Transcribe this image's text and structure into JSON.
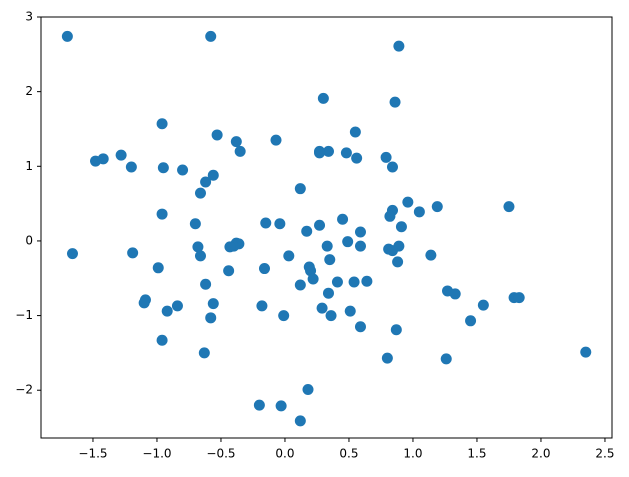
{
  "chart_data": {
    "type": "scatter",
    "color": "#1f77b4",
    "x": [
      -1.7,
      -0.58,
      0.89,
      0.3,
      0.86,
      -0.96,
      -0.53,
      0.55,
      -0.38,
      -0.07,
      -0.35,
      0.27,
      0.34,
      0.27,
      0.48,
      0.56,
      0.79,
      -1.28,
      -1.48,
      -1.42,
      -1.2,
      -0.95,
      -0.8,
      0.84,
      -0.56,
      -0.62,
      -0.66,
      0.12,
      0.96,
      0.84,
      0.82,
      1.05,
      1.19,
      1.75,
      -0.96,
      0.45,
      -0.7,
      -0.15,
      -0.04,
      0.27,
      0.17,
      0.59,
      0.91,
      0.49,
      0.33,
      0.59,
      0.81,
      0.89,
      0.84,
      0.88,
      -0.38,
      -0.36,
      -0.4,
      -0.43,
      -0.68,
      -0.66,
      -1.66,
      -1.19,
      -0.99,
      -0.44,
      -0.16,
      0.03,
      0.35,
      0.19,
      0.2,
      0.22,
      0.12,
      0.41,
      0.54,
      0.64,
      0.34,
      -0.62,
      1.14,
      1.27,
      1.33,
      -1.09,
      -1.1,
      -0.84,
      -0.92,
      -0.56,
      -0.18,
      0.29,
      0.51,
      1.55,
      1.79,
      1.83,
      0.36,
      -0.01,
      -0.58,
      1.45,
      0.59,
      0.87,
      -0.96,
      -0.63,
      0.8,
      1.26,
      2.35,
      0.18,
      -0.2,
      -0.03,
      0.12
    ],
    "y": [
      2.74,
      2.74,
      2.61,
      1.91,
      1.86,
      1.57,
      1.42,
      1.46,
      1.33,
      1.35,
      1.2,
      1.2,
      1.2,
      1.18,
      1.18,
      1.11,
      1.12,
      1.15,
      1.07,
      1.1,
      0.99,
      0.98,
      0.95,
      0.99,
      0.88,
      0.79,
      0.64,
      0.7,
      0.52,
      0.41,
      0.33,
      0.39,
      0.46,
      0.46,
      0.36,
      0.29,
      0.23,
      0.24,
      0.23,
      0.21,
      0.13,
      0.12,
      0.19,
      -0.01,
      -0.07,
      -0.07,
      -0.11,
      -0.07,
      -0.13,
      -0.28,
      -0.03,
      -0.04,
      -0.07,
      -0.08,
      -0.08,
      -0.2,
      -0.17,
      -0.16,
      -0.36,
      -0.4,
      -0.37,
      -0.2,
      -0.25,
      -0.35,
      -0.4,
      -0.51,
      -0.59,
      -0.55,
      -0.55,
      -0.54,
      -0.7,
      -0.58,
      -0.19,
      -0.67,
      -0.71,
      -0.79,
      -0.83,
      -0.87,
      -0.94,
      -0.84,
      -0.87,
      -0.9,
      -0.94,
      -0.86,
      -0.76,
      -0.76,
      -1.0,
      -1.0,
      -1.03,
      -1.07,
      -1.15,
      -1.19,
      -1.33,
      -1.5,
      -1.57,
      -1.58,
      -1.49,
      -1.99,
      -2.2,
      -2.21,
      -2.41
    ],
    "xlim": [
      -1.906,
      2.555
    ],
    "ylim": [
      -2.64,
      3.0
    ],
    "xticks": [
      {
        "value": -1.5,
        "label": "−1.5"
      },
      {
        "value": -1.0,
        "label": "−1.0"
      },
      {
        "value": -0.5,
        "label": "−0.5"
      },
      {
        "value": 0,
        "label": "0.0"
      },
      {
        "value": 0.5,
        "label": "0.5"
      },
      {
        "value": 1,
        "label": "1.0"
      },
      {
        "value": 1.5,
        "label": "1.5"
      },
      {
        "value": 2,
        "label": "2.0"
      },
      {
        "value": 2.5,
        "label": "2.5"
      }
    ],
    "yticks": [
      {
        "value": -2,
        "label": "−2"
      },
      {
        "value": -1,
        "label": "−1"
      },
      0,
      1,
      2,
      3
    ]
  }
}
